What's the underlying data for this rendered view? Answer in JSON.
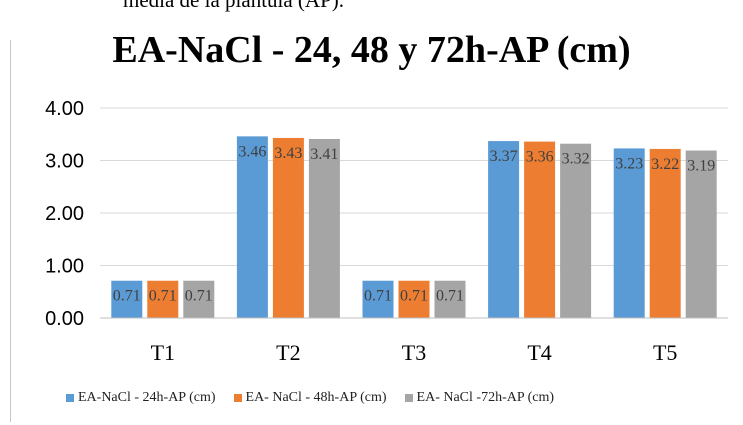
{
  "page": {
    "caption_fragment": "media de la plantula (AP)."
  },
  "chart_data": {
    "type": "bar",
    "title": "EA-NaCl - 24, 48 y 72h-AP (cm)",
    "categories": [
      "T1",
      "T2",
      "T3",
      "T4",
      "T5"
    ],
    "series": [
      {
        "name": "EA-NaCl - 24h-AP (cm)",
        "color": "#5b9bd5",
        "values": [
          0.71,
          3.46,
          0.71,
          3.37,
          3.23
        ]
      },
      {
        "name": "EA- NaCl - 48h-AP (cm)",
        "color": "#ed7d31",
        "values": [
          0.71,
          3.43,
          0.71,
          3.36,
          3.22
        ]
      },
      {
        "name": "EA- NaCl -72h-AP (cm)",
        "color": "#a5a5a5",
        "values": [
          0.71,
          3.41,
          0.71,
          3.32,
          3.19
        ]
      }
    ],
    "yticks": [
      "0.00",
      "1.00",
      "2.00",
      "3.00",
      "4.00"
    ],
    "ylim": [
      0,
      4
    ],
    "grid": true,
    "legend_position": "bottom"
  }
}
